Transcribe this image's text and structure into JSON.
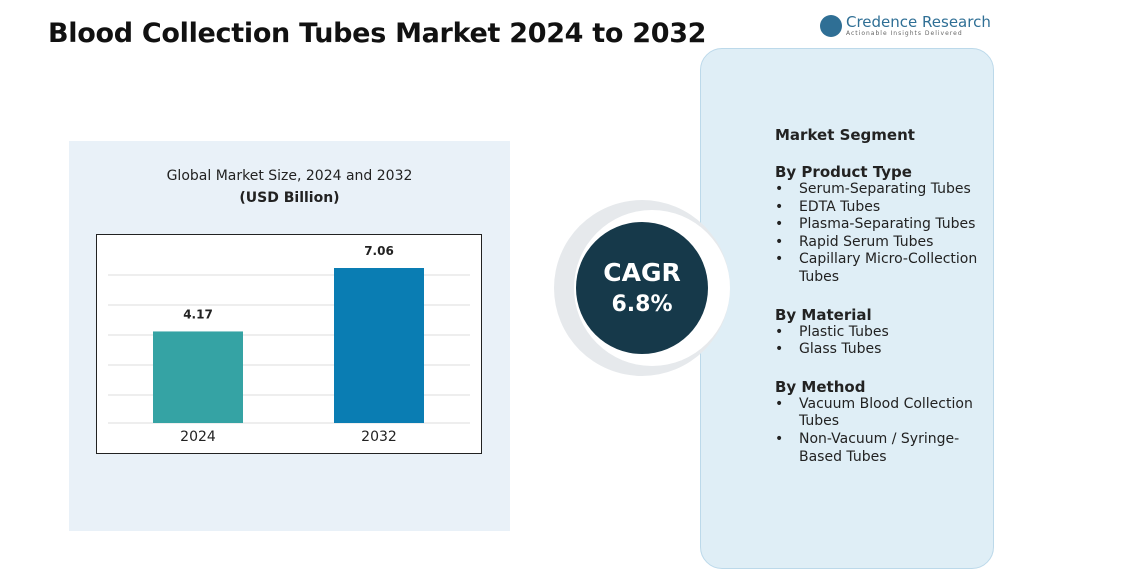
{
  "title": "Blood Collection Tubes Market 2024 to 2032",
  "logo": {
    "name": "Credence Research",
    "tagline": "Actionable Insights Delivered"
  },
  "chart_data": {
    "type": "bar",
    "title": "Global Market Size, 2024 and 2032",
    "subtitle": "(USD Billion)",
    "categories": [
      "2024",
      "2032"
    ],
    "values": [
      4.17,
      7.06
    ],
    "colors": [
      "#35a3a4",
      "#0a7db3"
    ]
  },
  "cagr": {
    "label": "CAGR",
    "value": "6.8%"
  },
  "segments": {
    "title": "Market Segment",
    "groups": [
      {
        "name": "By Product Type",
        "items": [
          "Serum-Separating Tubes",
          "EDTA Tubes",
          "Plasma-Separating Tubes",
          "Rapid Serum Tubes",
          "Capillary Micro-Collection Tubes"
        ]
      },
      {
        "name": "By Material",
        "items": [
          "Plastic Tubes",
          "Glass Tubes"
        ]
      },
      {
        "name": "By Method",
        "items": [
          "Vacuum Blood Collection Tubes",
          "Non-Vacuum / Syringe-Based Tubes"
        ]
      }
    ]
  }
}
